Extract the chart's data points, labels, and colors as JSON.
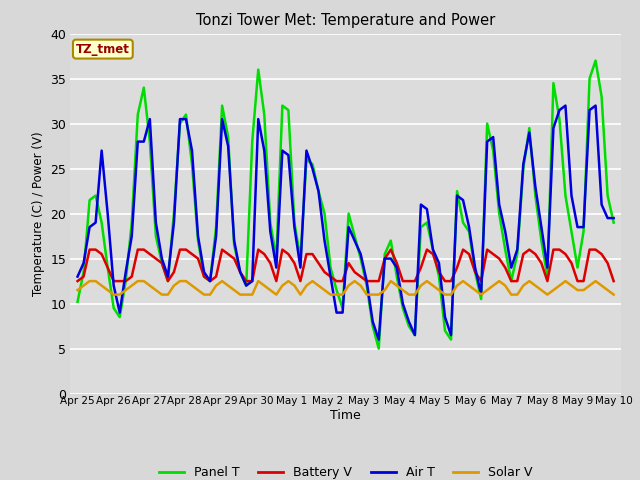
{
  "title": "Tonzi Tower Met: Temperature and Power",
  "xlabel": "Time",
  "ylabel": "Temperature (C) / Power (V)",
  "annotation": "TZ_tmet",
  "annotation_color": "#990000",
  "annotation_bg": "#ffffcc",
  "ylim": [
    0,
    40
  ],
  "yticks": [
    0,
    5,
    10,
    15,
    20,
    25,
    30,
    35,
    40
  ],
  "x_labels": [
    "Apr 25",
    "Apr 26",
    "Apr 27",
    "Apr 28",
    "Apr 29",
    "Apr 30",
    "May 1",
    "May 2",
    "May 3",
    "May 4",
    "May 5",
    "May 6",
    "May 7",
    "May 8",
    "May 9",
    "May 10"
  ],
  "bg_color": "#d8d8d8",
  "plot_bg": "#dcdcdc",
  "grid_color": "#ffffff",
  "legend": [
    "Panel T",
    "Battery V",
    "Air T",
    "Solar V"
  ],
  "legend_colors": [
    "#00dd00",
    "#dd0000",
    "#0000dd",
    "#dd9900"
  ],
  "panel_t": [
    10.2,
    13.5,
    21.5,
    22.0,
    19.0,
    14.0,
    9.5,
    8.5,
    12.5,
    19.0,
    31.0,
    34.0,
    28.0,
    17.5,
    14.5,
    12.5,
    20.0,
    30.0,
    31.0,
    25.5,
    17.0,
    13.0,
    12.5,
    18.5,
    32.0,
    28.5,
    16.5,
    13.5,
    12.0,
    28.0,
    36.0,
    31.0,
    19.0,
    15.0,
    32.0,
    31.5,
    19.0,
    15.0,
    26.0,
    25.5,
    22.5,
    20.0,
    14.0,
    11.5,
    9.5,
    20.0,
    17.5,
    15.0,
    12.0,
    7.5,
    5.0,
    15.5,
    17.0,
    13.0,
    9.5,
    7.5,
    6.5,
    18.5,
    19.0,
    16.0,
    13.0,
    7.0,
    6.0,
    22.5,
    19.0,
    18.0,
    13.5,
    10.5,
    30.0,
    27.0,
    20.0,
    16.0,
    12.5,
    15.5,
    25.0,
    29.5,
    22.0,
    17.0,
    13.0,
    34.5,
    30.5,
    22.0,
    18.0,
    14.0,
    18.0,
    35.0,
    37.0,
    33.0,
    22.0,
    19.0
  ],
  "battery_v": [
    12.5,
    13.0,
    16.0,
    16.0,
    15.5,
    14.0,
    12.5,
    12.5,
    12.5,
    13.0,
    16.0,
    16.0,
    15.5,
    15.0,
    14.5,
    12.5,
    13.5,
    16.0,
    16.0,
    15.5,
    15.0,
    13.0,
    12.5,
    13.0,
    16.0,
    15.5,
    15.0,
    13.5,
    12.5,
    12.5,
    16.0,
    15.5,
    14.5,
    12.5,
    16.0,
    15.5,
    14.5,
    12.5,
    15.5,
    15.5,
    14.5,
    13.5,
    13.0,
    12.5,
    12.5,
    14.5,
    13.5,
    13.0,
    12.5,
    12.5,
    12.5,
    15.0,
    16.0,
    14.5,
    12.5,
    12.5,
    12.5,
    14.0,
    16.0,
    15.5,
    13.5,
    12.5,
    12.5,
    14.0,
    16.0,
    15.5,
    13.5,
    12.5,
    16.0,
    15.5,
    15.0,
    14.0,
    12.5,
    12.5,
    15.5,
    16.0,
    15.5,
    14.5,
    12.5,
    16.0,
    16.0,
    15.5,
    14.5,
    12.5,
    12.5,
    16.0,
    16.0,
    15.5,
    14.5,
    12.5
  ],
  "air_t": [
    13.0,
    14.5,
    18.5,
    19.0,
    27.0,
    20.0,
    12.0,
    9.0,
    13.5,
    17.5,
    28.0,
    28.0,
    30.5,
    19.0,
    15.0,
    13.0,
    19.0,
    30.5,
    30.5,
    27.0,
    17.5,
    13.5,
    12.5,
    17.5,
    30.5,
    27.5,
    17.0,
    13.5,
    12.0,
    12.5,
    30.5,
    27.0,
    18.0,
    14.0,
    27.0,
    26.5,
    18.5,
    14.0,
    27.0,
    25.0,
    22.5,
    17.0,
    13.0,
    9.0,
    9.0,
    18.5,
    17.0,
    15.5,
    12.5,
    8.0,
    6.0,
    15.0,
    15.0,
    14.0,
    10.0,
    8.0,
    6.5,
    21.0,
    20.5,
    16.0,
    14.5,
    8.5,
    6.5,
    22.0,
    21.5,
    18.5,
    14.0,
    11.0,
    28.0,
    28.5,
    21.0,
    18.0,
    14.0,
    16.0,
    25.5,
    29.0,
    23.0,
    18.5,
    14.0,
    29.5,
    31.5,
    32.0,
    22.0,
    18.5,
    18.5,
    31.5,
    32.0,
    21.0,
    19.5,
    19.5
  ],
  "solar_v": [
    11.5,
    12.0,
    12.5,
    12.5,
    12.0,
    11.5,
    11.0,
    11.0,
    11.5,
    12.0,
    12.5,
    12.5,
    12.0,
    11.5,
    11.0,
    11.0,
    12.0,
    12.5,
    12.5,
    12.0,
    11.5,
    11.0,
    11.0,
    12.0,
    12.5,
    12.0,
    11.5,
    11.0,
    11.0,
    11.0,
    12.5,
    12.0,
    11.5,
    11.0,
    12.0,
    12.5,
    12.0,
    11.0,
    12.0,
    12.5,
    12.0,
    11.5,
    11.0,
    11.0,
    11.0,
    12.0,
    12.5,
    12.0,
    11.0,
    11.0,
    11.0,
    11.5,
    12.5,
    12.0,
    11.5,
    11.0,
    11.0,
    12.0,
    12.5,
    12.0,
    11.5,
    11.0,
    11.0,
    12.0,
    12.5,
    12.0,
    11.5,
    11.0,
    11.5,
    12.0,
    12.5,
    12.0,
    11.0,
    11.0,
    12.0,
    12.5,
    12.0,
    11.5,
    11.0,
    11.5,
    12.0,
    12.5,
    12.0,
    11.5,
    11.5,
    12.0,
    12.5,
    12.0,
    11.5,
    11.0
  ]
}
